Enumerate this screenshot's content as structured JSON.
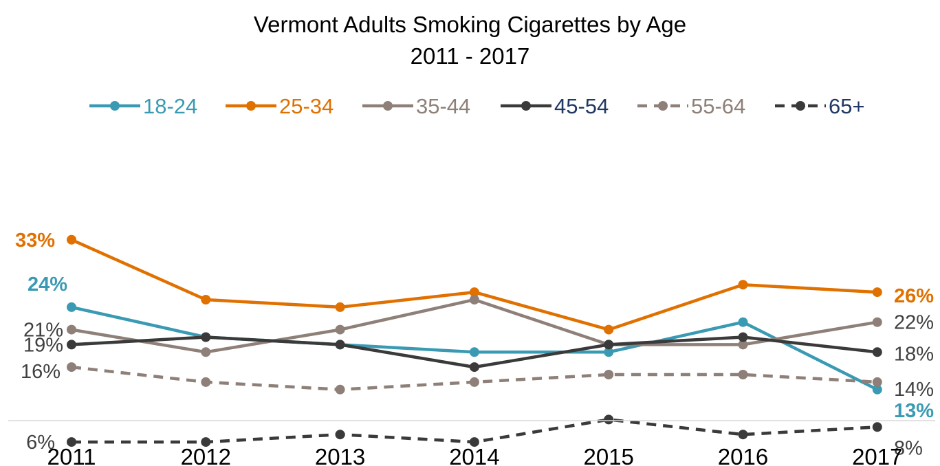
{
  "chart_data": {
    "type": "line",
    "title": "Vermont Adults Smoking Cigarettes by Age",
    "subtitle": "2011 - 2017",
    "x": [
      "2011",
      "2012",
      "2013",
      "2014",
      "2015",
      "2016",
      "2017"
    ],
    "ylim": [
      0,
      45
    ],
    "grid": false,
    "legend_position": "top",
    "series": [
      {
        "name": "18-24",
        "values": [
          24,
          20,
          19,
          18,
          18,
          22,
          13
        ],
        "color": "#3a9ab3",
        "dash": false,
        "labels": {
          "first": "24%",
          "last": "13%"
        },
        "label_color": "#3a9ab3",
        "label_bold": true
      },
      {
        "name": "25-34",
        "values": [
          33,
          25,
          24,
          26,
          21,
          27,
          26
        ],
        "color": "#e07000",
        "dash": false,
        "labels": {
          "first": "33%",
          "last": "26%"
        },
        "label_color": "#e07000",
        "label_bold": true
      },
      {
        "name": "35-44",
        "values": [
          21,
          18,
          21,
          25,
          19,
          19,
          22
        ],
        "color": "#8e8078",
        "dash": false,
        "labels": {
          "first": "21%",
          "last": "22%"
        },
        "label_color": "#404040",
        "label_bold": false
      },
      {
        "name": "45-54",
        "values": [
          19,
          20,
          19,
          16,
          19,
          20,
          18
        ],
        "color": "#3a3a3a",
        "dash": false,
        "labels": {
          "first": "19%",
          "last": "18%"
        },
        "label_color": "#404040",
        "label_bold": false
      },
      {
        "name": "55-64",
        "values": [
          16,
          14,
          13,
          14,
          15,
          15,
          14
        ],
        "color": "#8e8078",
        "dash": true,
        "labels": {
          "first": "16%",
          "last": "14%"
        },
        "label_color": "#404040",
        "label_bold": false
      },
      {
        "name": "65+",
        "values": [
          6,
          6,
          7,
          6,
          9,
          7,
          8
        ],
        "color": "#3a3a3a",
        "dash": true,
        "labels": {
          "first": "6%",
          "last": "8%"
        },
        "label_color": "#404040",
        "label_bold": false
      }
    ]
  },
  "legend_text_colors": [
    "#3a9ab3",
    "#e07000",
    "#8e8078",
    "#1f3864",
    "#8e8078",
    "#1f3864"
  ]
}
